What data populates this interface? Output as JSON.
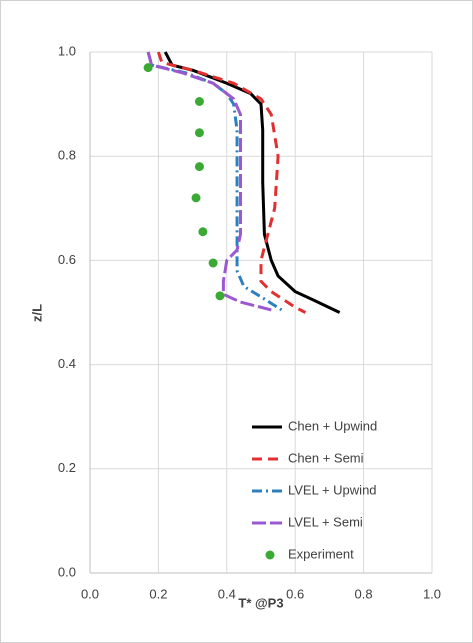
{
  "chart_data": {
    "type": "line",
    "xlabel": "T* @P3",
    "ylabel": "z/L",
    "xlim": [
      0,
      1
    ],
    "ylim": [
      0,
      1
    ],
    "xticks": [
      {
        "value": 0,
        "label": "0.0"
      },
      {
        "value": 0.2,
        "label": "0.2"
      },
      {
        "value": 0.4,
        "label": "0.4"
      },
      {
        "value": 0.6,
        "label": "0.6"
      },
      {
        "value": 0.8,
        "label": "0.8"
      },
      {
        "value": 1,
        "label": "1.0"
      }
    ],
    "yticks": [
      {
        "value": 0,
        "label": "0.0"
      },
      {
        "value": 0.2,
        "label": "0.2"
      },
      {
        "value": 0.4,
        "label": "0.4"
      },
      {
        "value": 0.6,
        "label": "0.6"
      },
      {
        "value": 0.8,
        "label": "0.8"
      },
      {
        "value": 1,
        "label": "1.0"
      }
    ],
    "grid": true,
    "legend": "lower right",
    "series": [
      {
        "name": "Chen + Upwind",
        "color": "#000000",
        "style": "solid",
        "x": [
          0.22,
          0.24,
          0.3,
          0.4,
          0.47,
          0.5,
          0.505,
          0.505,
          0.51,
          0.53,
          0.55,
          0.6,
          0.65,
          0.73
        ],
        "values": [
          1.0,
          0.975,
          0.965,
          0.94,
          0.92,
          0.9,
          0.85,
          0.75,
          0.65,
          0.6,
          0.57,
          0.54,
          0.525,
          0.5
        ]
      },
      {
        "name": "Chen + Semi",
        "color": "#e03030",
        "style": "dashed",
        "x": [
          0.2,
          0.21,
          0.3,
          0.42,
          0.5,
          0.53,
          0.55,
          0.54,
          0.52,
          0.5,
          0.5,
          0.53,
          0.6,
          0.63
        ],
        "values": [
          1.0,
          0.98,
          0.965,
          0.94,
          0.91,
          0.88,
          0.8,
          0.7,
          0.65,
          0.6,
          0.56,
          0.54,
          0.51,
          0.5
        ]
      },
      {
        "name": "LVEL + Upwind",
        "color": "#2e7fc0",
        "style": "dashdot",
        "x": [
          0.17,
          0.18,
          0.28,
          0.36,
          0.4,
          0.42,
          0.43,
          0.43,
          0.43,
          0.43,
          0.45,
          0.5,
          0.56
        ],
        "values": [
          1.0,
          0.975,
          0.96,
          0.94,
          0.92,
          0.9,
          0.85,
          0.7,
          0.62,
          0.58,
          0.55,
          0.53,
          0.505
        ]
      },
      {
        "name": "LVEL + Semi",
        "color": "#9b59d0",
        "style": "longdash",
        "x": [
          0.17,
          0.18,
          0.27,
          0.36,
          0.42,
          0.44,
          0.44,
          0.44,
          0.43,
          0.4,
          0.39,
          0.39,
          0.44,
          0.53
        ],
        "values": [
          1.0,
          0.975,
          0.96,
          0.94,
          0.91,
          0.88,
          0.8,
          0.65,
          0.62,
          0.6,
          0.56,
          0.535,
          0.52,
          0.505
        ]
      },
      {
        "name": "Experiment",
        "color": "#3aaa35",
        "style": "marker",
        "x": [
          0.17,
          0.32,
          0.32,
          0.32,
          0.31,
          0.33,
          0.36,
          0.38
        ],
        "values": [
          0.97,
          0.905,
          0.845,
          0.78,
          0.72,
          0.655,
          0.595,
          0.532
        ]
      }
    ]
  }
}
